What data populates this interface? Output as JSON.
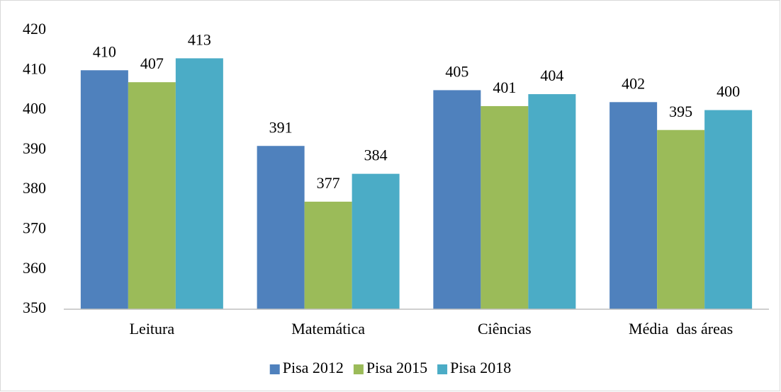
{
  "chart_data": {
    "type": "bar",
    "categories": [
      "Leitura",
      "Matemática",
      "Ciências",
      "Média  das áreas"
    ],
    "series": [
      {
        "name": "Pisa 2012",
        "color": "#4f81bd",
        "values": [
          410,
          391,
          405,
          402
        ]
      },
      {
        "name": "Pisa 2015",
        "color": "#9bbb59",
        "values": [
          407,
          377,
          401,
          395
        ]
      },
      {
        "name": "Pisa 2018",
        "color": "#4bacc6",
        "values": [
          413,
          384,
          404,
          400
        ]
      }
    ],
    "ylim": [
      350,
      420
    ],
    "yticks": [
      350,
      360,
      370,
      380,
      390,
      400,
      410,
      420
    ],
    "grid": false,
    "legend": "bottom"
  }
}
